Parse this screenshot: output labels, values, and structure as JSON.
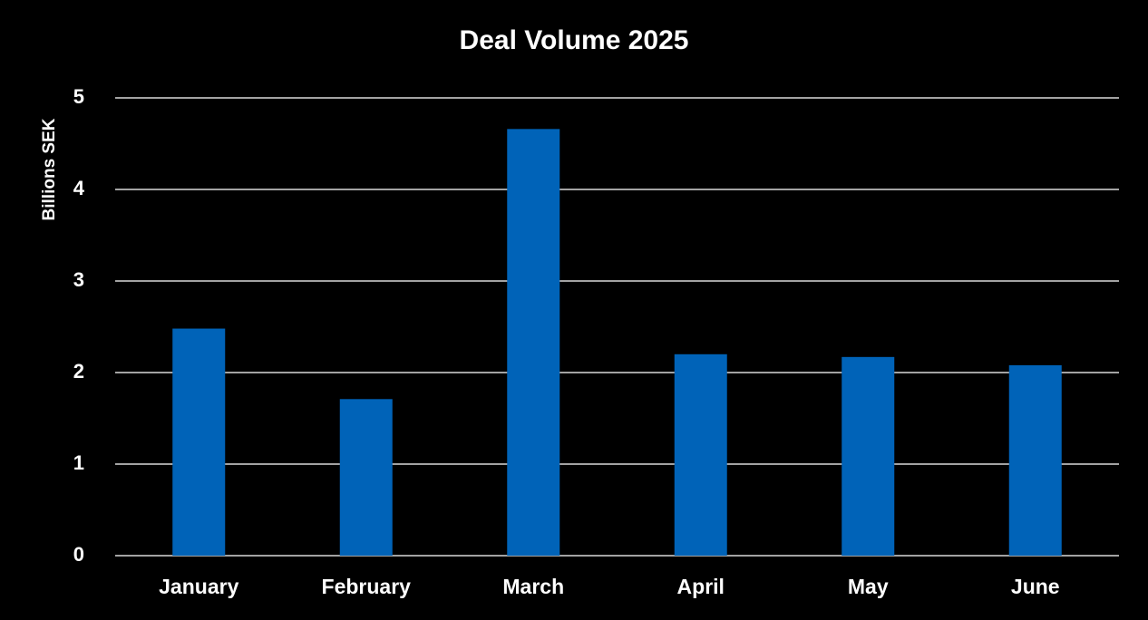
{
  "chart_data": {
    "type": "bar",
    "title": "Deal Volume 2025",
    "y_label": "Billions SEK",
    "categories": [
      "January",
      "February",
      "March",
      "April",
      "May",
      "June"
    ],
    "values": [
      2.48,
      1.71,
      4.66,
      2.2,
      2.17,
      2.08
    ],
    "color": "#0063b8",
    "ylim": [
      0,
      5
    ],
    "yticks": [
      0,
      1,
      2,
      3,
      4,
      5
    ],
    "grid": true
  }
}
